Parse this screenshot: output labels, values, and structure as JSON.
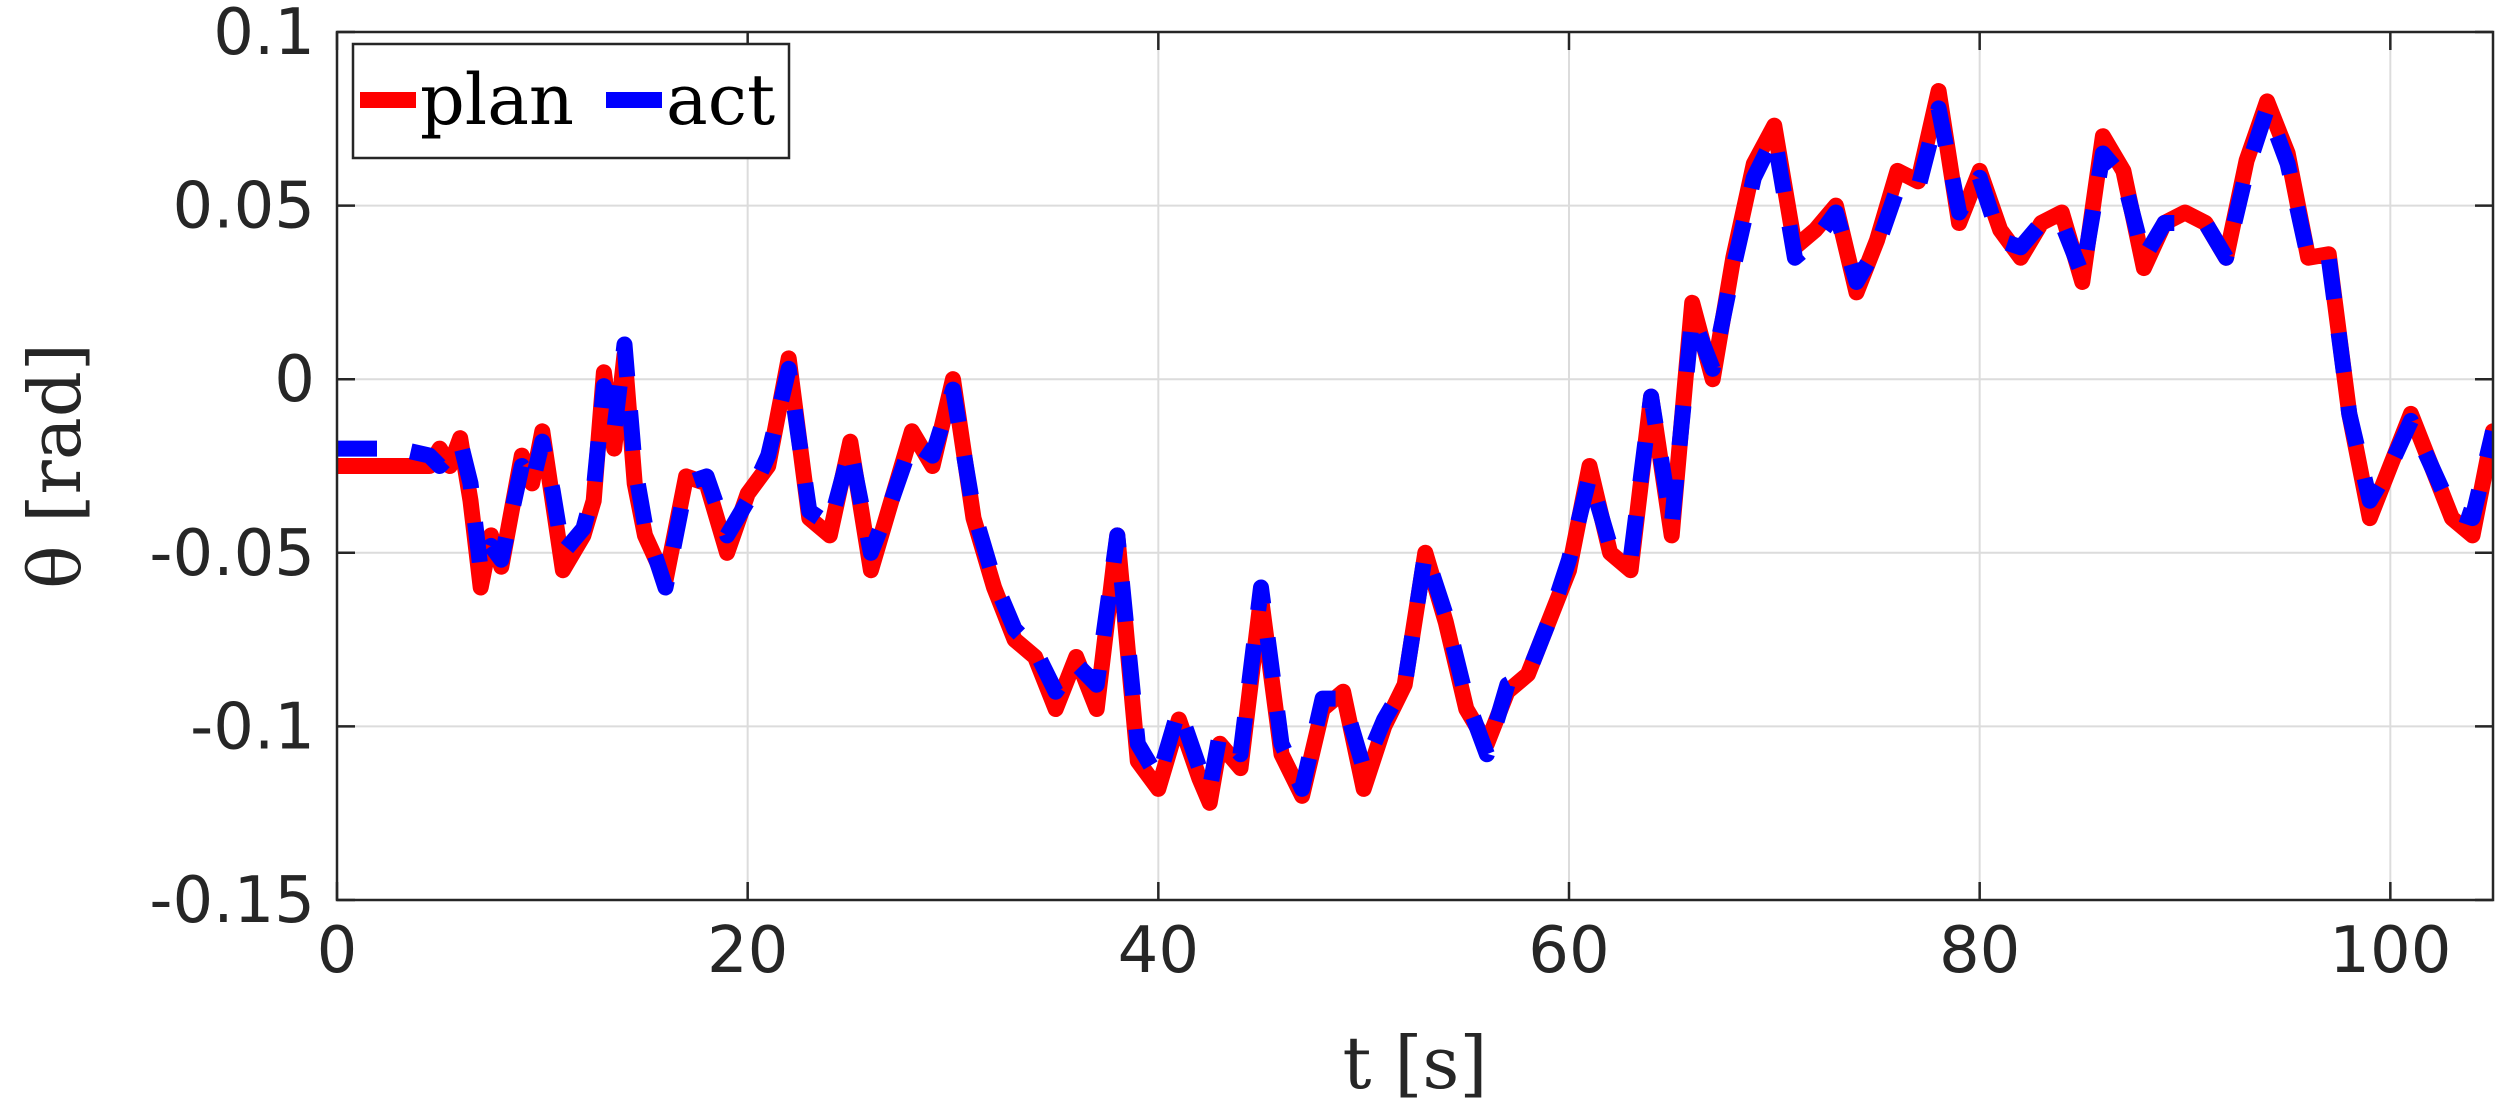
{
  "chart_data": {
    "type": "line",
    "xlabel": "t [s]",
    "ylabel": "θ [rad]",
    "xlim": [
      0,
      105
    ],
    "ylim": [
      -0.15,
      0.1
    ],
    "x_ticks": [
      0,
      20,
      40,
      60,
      80,
      100
    ],
    "y_ticks": [
      -0.15,
      -0.1,
      -0.05,
      0,
      0.05,
      0.1
    ],
    "x_tick_labels": [
      "0",
      "20",
      "40",
      "60",
      "80",
      "100"
    ],
    "y_tick_labels": [
      "-0.15",
      "-0.1",
      "-0.05",
      "0",
      "0.05",
      "0.1"
    ],
    "grid": true,
    "legend_position": "top-left",
    "series": [
      {
        "name": "plan",
        "color": "#ff0000",
        "style": "solid",
        "x": [
          0,
          4.5,
          5,
          5.5,
          6,
          6.5,
          7,
          7.5,
          8,
          9,
          9.5,
          10,
          10.5,
          11,
          12,
          12.5,
          13,
          13.5,
          14,
          14.5,
          15,
          16,
          17,
          18,
          19,
          20,
          21,
          22,
          23,
          24,
          25,
          26,
          27,
          28,
          29,
          30,
          31,
          32,
          33,
          34,
          35,
          36,
          37,
          38,
          39,
          40,
          41,
          42,
          42.5,
          43,
          44,
          45,
          46,
          47,
          48,
          49,
          50,
          51,
          52,
          53,
          54,
          55,
          56,
          57,
          58,
          59,
          60,
          61,
          62,
          63,
          64,
          65,
          66,
          67,
          68,
          69,
          70,
          71,
          72,
          73,
          74,
          75,
          76,
          77,
          78,
          79,
          80,
          81,
          82,
          83,
          84,
          85,
          86,
          87,
          88,
          89,
          90,
          91,
          92,
          93,
          94,
          95,
          96,
          97,
          98,
          99,
          100,
          101,
          102,
          103,
          104,
          105
        ],
        "values": [
          -0.025,
          -0.025,
          -0.02,
          -0.025,
          -0.017,
          -0.035,
          -0.06,
          -0.045,
          -0.054,
          -0.022,
          -0.03,
          -0.015,
          -0.035,
          -0.055,
          -0.045,
          -0.035,
          0.002,
          -0.02,
          0.007,
          -0.03,
          -0.045,
          -0.058,
          -0.028,
          -0.03,
          -0.05,
          -0.033,
          -0.025,
          0.006,
          -0.04,
          -0.045,
          -0.018,
          -0.055,
          -0.035,
          -0.015,
          -0.025,
          0.0,
          -0.04,
          -0.06,
          -0.075,
          -0.08,
          -0.095,
          -0.08,
          -0.095,
          -0.045,
          -0.11,
          -0.118,
          -0.098,
          -0.115,
          -0.122,
          -0.105,
          -0.112,
          -0.063,
          -0.108,
          -0.12,
          -0.095,
          -0.09,
          -0.118,
          -0.1,
          -0.088,
          -0.05,
          -0.07,
          -0.095,
          -0.105,
          -0.09,
          -0.085,
          -0.07,
          -0.055,
          -0.025,
          -0.05,
          -0.055,
          -0.005,
          -0.045,
          0.022,
          0.0,
          0.035,
          0.062,
          0.073,
          0.038,
          0.043,
          0.05,
          0.025,
          0.04,
          0.06,
          0.057,
          0.083,
          0.045,
          0.06,
          0.043,
          0.035,
          0.045,
          0.048,
          0.028,
          0.07,
          0.06,
          0.032,
          0.045,
          0.048,
          0.045,
          0.035,
          0.063,
          0.08,
          0.065,
          0.035,
          0.036,
          -0.01,
          -0.04,
          -0.025,
          -0.01,
          -0.025,
          -0.04,
          -0.045,
          -0.015
        ]
      },
      {
        "name": "act",
        "color": "#0000ff",
        "style": "dashed",
        "x": [
          0,
          3,
          4.5,
          5,
          5.5,
          6,
          6.5,
          7,
          7.5,
          8,
          9,
          9.5,
          10,
          10.5,
          11,
          12,
          12.5,
          13,
          13.5,
          14,
          14.5,
          15,
          16,
          17,
          18,
          19,
          20,
          21,
          22,
          23,
          24,
          25,
          26,
          27,
          28,
          29,
          30,
          31,
          32,
          33,
          34,
          35,
          36,
          37,
          38,
          39,
          40,
          41,
          42,
          42.5,
          43,
          44,
          45,
          46,
          47,
          48,
          49,
          50,
          51,
          52,
          53,
          54,
          55,
          56,
          57,
          58,
          59,
          60,
          61,
          62,
          63,
          64,
          65,
          66,
          67,
          68,
          69,
          70,
          71,
          72,
          73,
          74,
          75,
          76,
          77,
          78,
          79,
          80,
          81,
          82,
          83,
          84,
          85,
          86,
          87,
          88,
          89,
          90,
          91,
          92,
          93,
          94,
          95,
          96,
          97,
          98,
          99,
          100,
          101,
          102,
          103,
          104,
          105
        ],
        "values": [
          -0.02,
          -0.02,
          -0.022,
          -0.025,
          -0.022,
          -0.018,
          -0.03,
          -0.055,
          -0.048,
          -0.052,
          -0.025,
          -0.03,
          -0.018,
          -0.032,
          -0.05,
          -0.043,
          -0.032,
          -0.002,
          -0.015,
          0.01,
          -0.025,
          -0.042,
          -0.06,
          -0.03,
          -0.028,
          -0.045,
          -0.035,
          -0.022,
          0.003,
          -0.038,
          -0.042,
          -0.02,
          -0.05,
          -0.035,
          -0.018,
          -0.022,
          -0.003,
          -0.038,
          -0.058,
          -0.072,
          -0.078,
          -0.09,
          -0.082,
          -0.088,
          -0.045,
          -0.105,
          -0.115,
          -0.095,
          -0.112,
          -0.118,
          -0.102,
          -0.108,
          -0.06,
          -0.105,
          -0.118,
          -0.092,
          -0.092,
          -0.112,
          -0.098,
          -0.088,
          -0.05,
          -0.068,
          -0.092,
          -0.108,
          -0.088,
          -0.085,
          -0.07,
          -0.052,
          -0.028,
          -0.048,
          -0.052,
          -0.005,
          -0.042,
          0.018,
          0.003,
          0.032,
          0.058,
          0.07,
          0.035,
          0.04,
          0.048,
          0.028,
          0.038,
          0.055,
          0.055,
          0.078,
          0.048,
          0.058,
          0.04,
          0.038,
          0.045,
          0.045,
          0.03,
          0.065,
          0.058,
          0.035,
          0.045,
          0.045,
          0.045,
          0.035,
          0.06,
          0.078,
          0.062,
          0.035,
          0.035,
          -0.01,
          -0.035,
          -0.025,
          -0.012,
          -0.025,
          -0.038,
          -0.04,
          -0.015
        ]
      }
    ]
  }
}
